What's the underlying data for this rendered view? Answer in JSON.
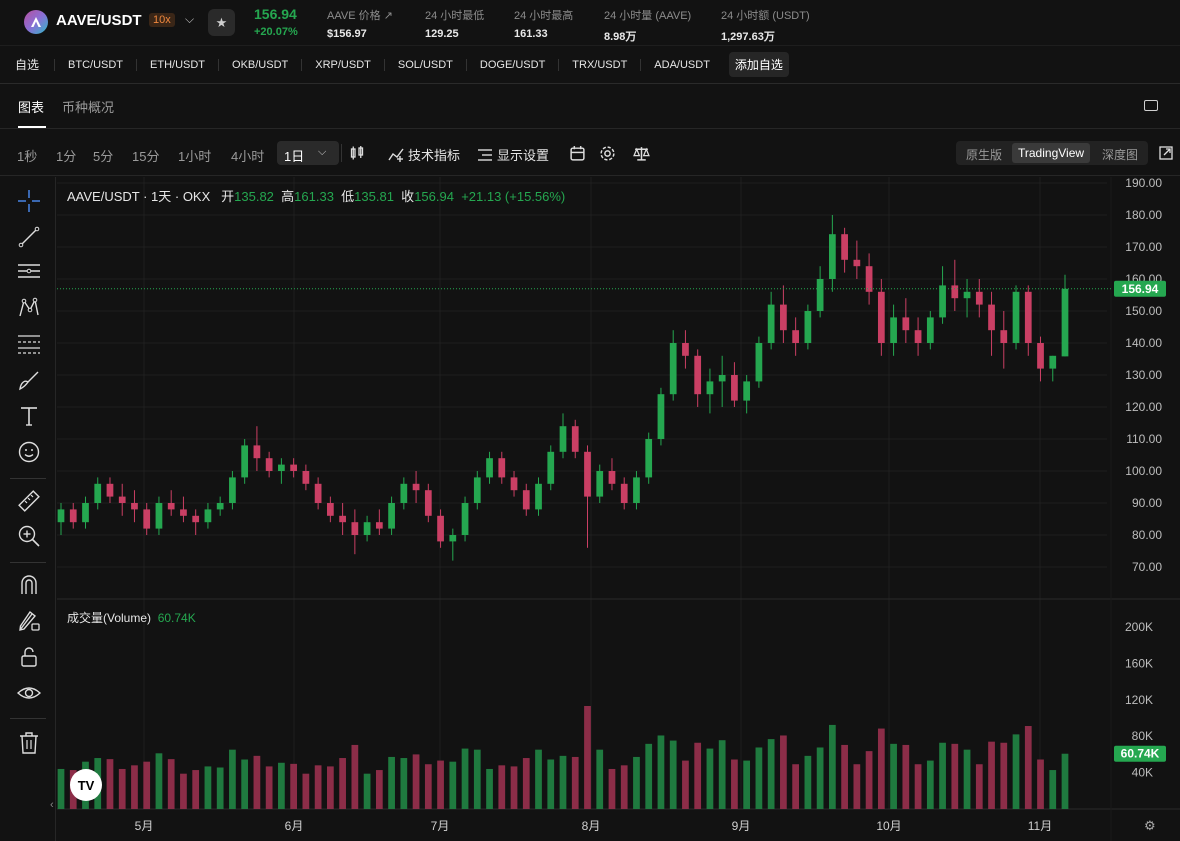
{
  "header": {
    "pair": "AAVE/USDT",
    "leverage": "10x",
    "last_price": "156.94",
    "change_pct": "+20.07%",
    "stats": [
      {
        "label": "AAVE 价格 ↗",
        "value": "$156.97"
      },
      {
        "label": "24 小时最低",
        "value": "129.25"
      },
      {
        "label": "24 小时最高",
        "value": "161.33"
      },
      {
        "label": "24 小时量 (AAVE)",
        "value": "8.98万"
      },
      {
        "label": "24 小时额 (USDT)",
        "value": "1,297.63万"
      }
    ]
  },
  "favorites": {
    "label": "自选",
    "items": [
      "BTC/USDT",
      "ETH/USDT",
      "OKB/USDT",
      "XRP/USDT",
      "SOL/USDT",
      "DOGE/USDT",
      "TRX/USDT",
      "ADA/USDT"
    ],
    "add_label": "添加自选"
  },
  "tabs": [
    {
      "label": "图表",
      "active": true
    },
    {
      "label": "币种概况",
      "active": false
    }
  ],
  "toolbar": {
    "timeframes": [
      "1秒",
      "1分",
      "5分",
      "15分",
      "1小时",
      "4小时",
      "1日"
    ],
    "active_timeframe": "1日",
    "indicators_label": "技术指标",
    "display_label": "显示设置",
    "views": [
      "原生版",
      "TradingView",
      "深度图"
    ],
    "active_view": "TradingView"
  },
  "legend": {
    "symbol": "AAVE/USDT · 1天 · OKX",
    "open_label": "开",
    "open": "135.82",
    "high_label": "高",
    "high": "161.33",
    "low_label": "低",
    "low": "135.81",
    "close_label": "收",
    "close": "156.94",
    "change": "+21.13 (+15.56%)"
  },
  "volume_legend": {
    "label": "成交量(Volume)",
    "value": "60.74K"
  },
  "chart_data": {
    "type": "candlestick",
    "price_axis": [
      "190.00",
      "180.00",
      "170.00",
      "160.00",
      "150.00",
      "140.00",
      "130.00",
      "120.00",
      "110.00",
      "100.00",
      "90.00",
      "80.00",
      "70.00"
    ],
    "price_ylim": [
      70,
      190
    ],
    "current_price_label": "156.94",
    "current_price": 156.94,
    "volume_axis": [
      "200K",
      "160K",
      "120K",
      "80K",
      "40K"
    ],
    "volume_ylim": [
      0,
      200000
    ],
    "current_volume_label": "60.74K",
    "current_volume": 60740,
    "x_labels": [
      "5月",
      "6月",
      "7月",
      "8月",
      "9月",
      "10月",
      "11月"
    ],
    "colors": {
      "up": "#25a750",
      "down": "#ca3f64",
      "volume_up": "#1f7a3f",
      "volume_down": "#8c2d48"
    },
    "candles_approx": [
      [
        84,
        90,
        80,
        88
      ],
      [
        88,
        90,
        82,
        84
      ],
      [
        84,
        92,
        82,
        90
      ],
      [
        90,
        98,
        88,
        96
      ],
      [
        96,
        98,
        90,
        92
      ],
      [
        92,
        96,
        86,
        90
      ],
      [
        90,
        94,
        84,
        88
      ],
      [
        88,
        90,
        80,
        82
      ],
      [
        82,
        92,
        80,
        90
      ],
      [
        90,
        94,
        86,
        88
      ],
      [
        88,
        92,
        84,
        86
      ],
      [
        86,
        88,
        80,
        84
      ],
      [
        84,
        90,
        82,
        88
      ],
      [
        88,
        92,
        86,
        90
      ],
      [
        90,
        100,
        88,
        98
      ],
      [
        98,
        110,
        96,
        108
      ],
      [
        108,
        114,
        100,
        104
      ],
      [
        104,
        106,
        98,
        100
      ],
      [
        100,
        104,
        96,
        102
      ],
      [
        102,
        104,
        98,
        100
      ],
      [
        100,
        102,
        94,
        96
      ],
      [
        96,
        98,
        88,
        90
      ],
      [
        90,
        92,
        84,
        86
      ],
      [
        86,
        90,
        80,
        84
      ],
      [
        84,
        88,
        74,
        80
      ],
      [
        80,
        86,
        78,
        84
      ],
      [
        84,
        88,
        80,
        82
      ],
      [
        82,
        92,
        80,
        90
      ],
      [
        90,
        98,
        88,
        96
      ],
      [
        96,
        100,
        90,
        94
      ],
      [
        94,
        96,
        84,
        86
      ],
      [
        86,
        88,
        76,
        78
      ],
      [
        78,
        82,
        72,
        80
      ],
      [
        80,
        92,
        78,
        90
      ],
      [
        90,
        100,
        88,
        98
      ],
      [
        98,
        106,
        96,
        104
      ],
      [
        104,
        106,
        96,
        98
      ],
      [
        98,
        100,
        92,
        94
      ],
      [
        94,
        96,
        86,
        88
      ],
      [
        88,
        98,
        86,
        96
      ],
      [
        96,
        108,
        94,
        106
      ],
      [
        106,
        118,
        104,
        114
      ],
      [
        114,
        116,
        104,
        106
      ],
      [
        106,
        108,
        76,
        92
      ],
      [
        92,
        102,
        90,
        100
      ],
      [
        100,
        104,
        94,
        96
      ],
      [
        96,
        98,
        88,
        90
      ],
      [
        90,
        100,
        88,
        98
      ],
      [
        98,
        112,
        96,
        110
      ],
      [
        110,
        126,
        108,
        124
      ],
      [
        124,
        144,
        122,
        140
      ],
      [
        140,
        144,
        132,
        136
      ],
      [
        136,
        138,
        120,
        124
      ],
      [
        124,
        132,
        118,
        128
      ],
      [
        128,
        136,
        120,
        130
      ],
      [
        130,
        134,
        120,
        122
      ],
      [
        122,
        130,
        118,
        128
      ],
      [
        128,
        142,
        126,
        140
      ],
      [
        140,
        156,
        138,
        152
      ],
      [
        152,
        158,
        140,
        144
      ],
      [
        144,
        148,
        136,
        140
      ],
      [
        140,
        152,
        138,
        150
      ],
      [
        150,
        164,
        148,
        160
      ],
      [
        160,
        180,
        156,
        174
      ],
      [
        174,
        176,
        162,
        166
      ],
      [
        166,
        172,
        160,
        164
      ],
      [
        164,
        168,
        152,
        156
      ],
      [
        156,
        160,
        136,
        140
      ],
      [
        140,
        152,
        136,
        148
      ],
      [
        148,
        154,
        140,
        144
      ],
      [
        144,
        148,
        136,
        140
      ],
      [
        140,
        150,
        138,
        148
      ],
      [
        148,
        164,
        146,
        158
      ],
      [
        158,
        166,
        150,
        154
      ],
      [
        154,
        160,
        148,
        156
      ],
      [
        156,
        160,
        148,
        152
      ],
      [
        152,
        156,
        136,
        144
      ],
      [
        144,
        150,
        132,
        140
      ],
      [
        140,
        158,
        138,
        156
      ],
      [
        156,
        158,
        136,
        140
      ],
      [
        140,
        142,
        128,
        132
      ],
      [
        132,
        136,
        128,
        136
      ],
      [
        135.82,
        161.33,
        135.81,
        156.94
      ]
    ]
  }
}
